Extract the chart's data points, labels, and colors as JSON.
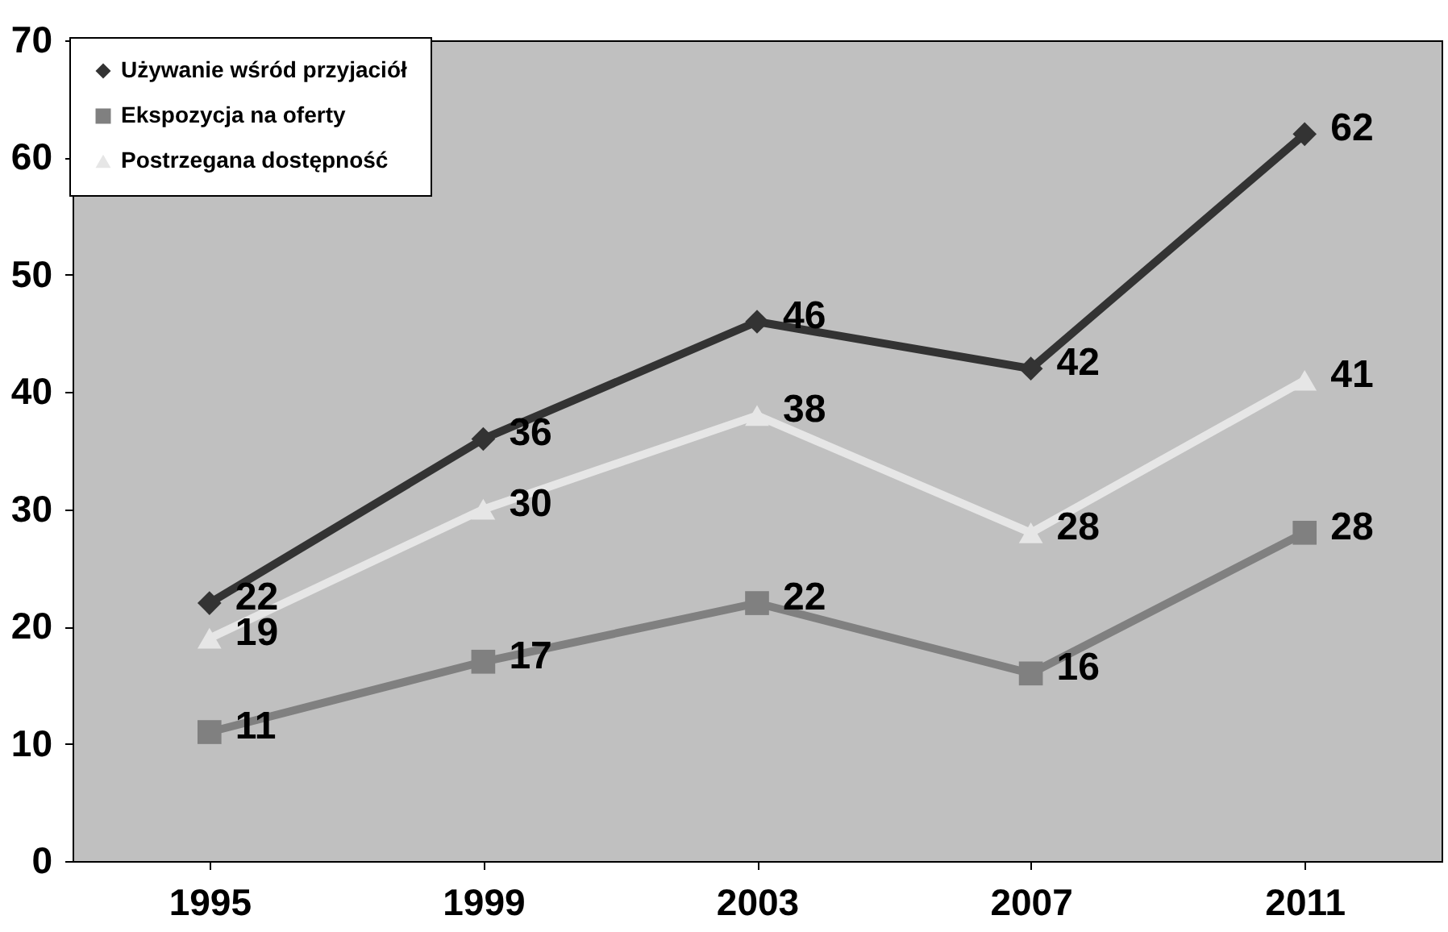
{
  "chart_data": {
    "type": "line",
    "categories": [
      "1995",
      "1999",
      "2003",
      "2007",
      "2011"
    ],
    "series": [
      {
        "name": "Używanie wśród przyjaciół",
        "color": "#333333",
        "marker": "diamond",
        "values": [
          22,
          36,
          46,
          42,
          62
        ]
      },
      {
        "name": "Ekspozycja na oferty",
        "color": "#808080",
        "marker": "square",
        "values": [
          11,
          17,
          22,
          16,
          28
        ]
      },
      {
        "name": "Postrzegana dostępność",
        "color": "#e6e6e6",
        "marker": "triangle",
        "values": [
          19,
          30,
          38,
          28,
          41
        ]
      }
    ],
    "ylim": [
      0,
      70
    ],
    "yticks": [
      0,
      10,
      20,
      30,
      40,
      50,
      60,
      70
    ],
    "data_labels": true,
    "legend": "top left",
    "grid": false
  }
}
